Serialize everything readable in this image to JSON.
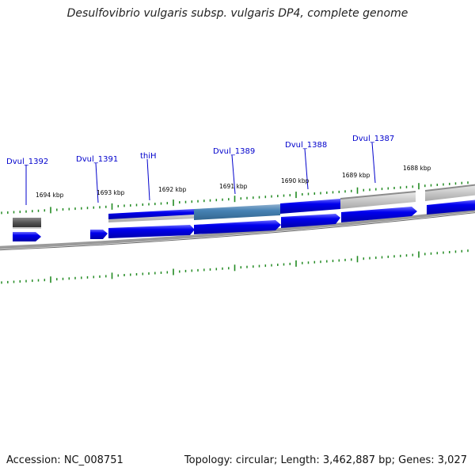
{
  "title": "Desulfovibrio vulgaris subsp. vulgaris DP4, complete genome",
  "footer": {
    "accession": "Accession: NC_008751",
    "topology": "Topology: circular; Length: 3,462,887 bp; Genes: 3,027"
  },
  "gene_labels": [
    "Dvul_1392",
    "Dvul_1391",
    "thiH",
    "Dvul_1389",
    "Dvul_1388",
    "Dvul_1387"
  ],
  "kbp_labels": [
    "1694 kbp",
    "1693 kbp",
    "1692 kbp",
    "1691 kbp",
    "1690 kbp",
    "1689 kbp",
    "1688 kbp"
  ],
  "colors": {
    "gene": "#0000ee",
    "gene_highlight": "#4682b4",
    "label": "#0000cc",
    "tick": "#228b22",
    "backbone": "#808080",
    "grey_feature": "#c8c8c8",
    "dark_feature": "#555555"
  }
}
